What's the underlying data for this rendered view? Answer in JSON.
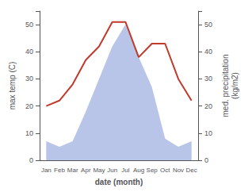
{
  "chart_data": {
    "type": "line",
    "xlabel": "date (month)",
    "ylabel": "max temp (C)",
    "y2label": "med. precipitation\n(kg/m2)",
    "categories": [
      "Jan",
      "Feb",
      "Mar",
      "Apr",
      "May",
      "Jun",
      "Jul",
      "Aug",
      "Sep",
      "Oct",
      "Nov",
      "Dec"
    ],
    "series": [
      {
        "type": "area",
        "color": "#b8c4e8",
        "values": [
          7,
          5,
          7,
          18,
          30,
          42,
          50,
          38,
          27,
          8,
          5,
          7
        ]
      },
      {
        "type": "line",
        "color": "#c0392b",
        "axis": "y2",
        "values": [
          20,
          22,
          28,
          37,
          42,
          51,
          51,
          38,
          43,
          43,
          30,
          22
        ]
      }
    ],
    "ylim": [
      0,
      55
    ],
    "yticks": [
      0,
      10,
      20,
      30,
      40,
      50
    ],
    "y2lim": [
      0,
      55
    ],
    "y2ticks": [
      0,
      10,
      20,
      30,
      40,
      50
    ],
    "grid": false
  }
}
